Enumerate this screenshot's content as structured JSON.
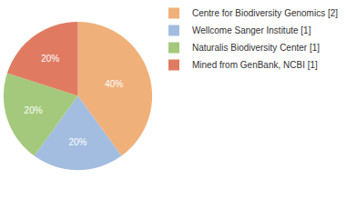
{
  "chart_data": {
    "type": "pie",
    "categories": [
      "Centre for Biodiversity Genomics [2]",
      "Wellcome Sanger Institute [1]",
      "Naturalis Biodiversity Center [1]",
      "Mined from GenBank, NCBI [1]"
    ],
    "values": [
      40,
      20,
      20,
      20
    ],
    "value_labels": [
      "40%",
      "20%",
      "20%",
      "20%"
    ],
    "colors": [
      "#efb07a",
      "#a3bde0",
      "#a4c97c",
      "#e07b62"
    ],
    "data_labels": true,
    "legend": "right"
  }
}
